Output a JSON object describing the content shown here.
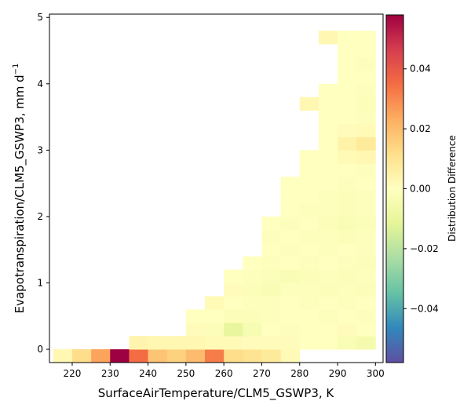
{
  "chart_data": {
    "type": "heatmap",
    "xlabel": "SurfaceAirTemperature/CLM5_GSWP3,  K",
    "ylabel": "Evapotranspiration/CLM5_GSWP3,  mm d",
    "ylabel_sup": "−1",
    "xlim": [
      214,
      302
    ],
    "ylim": [
      -0.2,
      5.05
    ],
    "xticks": [
      220,
      230,
      240,
      250,
      260,
      270,
      280,
      290,
      300
    ],
    "yticks": [
      0,
      1,
      2,
      3,
      4,
      5
    ],
    "colorbar": {
      "label": "Distribution Difference",
      "range": [
        -0.058,
        0.058
      ],
      "ticks": [
        -0.04,
        -0.02,
        0.0,
        0.02,
        0.04
      ],
      "tick_labels": [
        "−0.04",
        "−0.02",
        "0.00",
        "0.02",
        "0.04"
      ],
      "colormap": "Spectral_r"
    },
    "cell_width_K": 5,
    "cell_height_mmd": 0.2,
    "cells": [
      [
        217.5,
        -0.1,
        0.003
      ],
      [
        222.5,
        -0.1,
        0.012
      ],
      [
        227.5,
        -0.1,
        0.025
      ],
      [
        232.5,
        -0.1,
        0.058
      ],
      [
        237.5,
        -0.1,
        0.035
      ],
      [
        242.5,
        -0.1,
        0.018
      ],
      [
        247.5,
        -0.1,
        0.015
      ],
      [
        252.5,
        -0.1,
        0.02
      ],
      [
        257.5,
        -0.1,
        0.032
      ],
      [
        262.5,
        -0.1,
        0.012
      ],
      [
        267.5,
        -0.1,
        0.01
      ],
      [
        272.5,
        -0.1,
        0.008
      ],
      [
        277.5,
        -0.1,
        0.002
      ],
      [
        237.5,
        0.1,
        0.004
      ],
      [
        242.5,
        0.1,
        0.003
      ],
      [
        247.5,
        0.1,
        0.003
      ],
      [
        252.5,
        0.1,
        0.003
      ],
      [
        257.5,
        0.1,
        0.002
      ],
      [
        262.5,
        0.1,
        0.002
      ],
      [
        267.5,
        0.1,
        0.001
      ],
      [
        272.5,
        0.1,
        0.001
      ],
      [
        277.5,
        0.1,
        0.001
      ],
      [
        282.5,
        0.1,
        0.0
      ],
      [
        287.5,
        0.1,
        0.0
      ],
      [
        292.5,
        0.1,
        -0.003
      ],
      [
        297.5,
        0.1,
        -0.005
      ],
      [
        252.5,
        0.3,
        0.001
      ],
      [
        257.5,
        0.3,
        -0.002
      ],
      [
        262.5,
        0.3,
        -0.01
      ],
      [
        267.5,
        0.3,
        -0.004
      ],
      [
        272.5,
        0.3,
        0.0
      ],
      [
        277.5,
        0.3,
        -0.001
      ],
      [
        282.5,
        0.3,
        0.0
      ],
      [
        287.5,
        0.3,
        0.0
      ],
      [
        292.5,
        0.3,
        0.001
      ],
      [
        297.5,
        0.3,
        0.0
      ],
      [
        252.5,
        0.5,
        0.0
      ],
      [
        257.5,
        0.5,
        0.0
      ],
      [
        262.5,
        0.5,
        -0.002
      ],
      [
        267.5,
        0.5,
        -0.002
      ],
      [
        272.5,
        0.5,
        -0.001
      ],
      [
        277.5,
        0.5,
        0.0
      ],
      [
        282.5,
        0.5,
        0.0
      ],
      [
        287.5,
        0.5,
        -0.001
      ],
      [
        292.5,
        0.5,
        0.0
      ],
      [
        297.5,
        0.5,
        -0.001
      ],
      [
        257.5,
        0.7,
        0.002
      ],
      [
        262.5,
        0.7,
        0.0
      ],
      [
        267.5,
        0.7,
        -0.001
      ],
      [
        272.5,
        0.7,
        -0.001
      ],
      [
        277.5,
        0.7,
        0.0
      ],
      [
        282.5,
        0.7,
        -0.001
      ],
      [
        287.5,
        0.7,
        0.0
      ],
      [
        292.5,
        0.7,
        -0.001
      ],
      [
        297.5,
        0.7,
        0.0
      ],
      [
        262.5,
        0.9,
        0.001
      ],
      [
        267.5,
        0.9,
        -0.002
      ],
      [
        272.5,
        0.9,
        -0.003
      ],
      [
        277.5,
        0.9,
        -0.001
      ],
      [
        282.5,
        0.9,
        -0.001
      ],
      [
        287.5,
        0.9,
        -0.002
      ],
      [
        292.5,
        0.9,
        -0.001
      ],
      [
        297.5,
        0.9,
        -0.002
      ],
      [
        262.5,
        1.1,
        0.0
      ],
      [
        267.5,
        1.1,
        -0.001
      ],
      [
        272.5,
        1.1,
        -0.002
      ],
      [
        277.5,
        1.1,
        -0.003
      ],
      [
        282.5,
        1.1,
        -0.002
      ],
      [
        287.5,
        1.1,
        -0.001
      ],
      [
        292.5,
        1.1,
        -0.002
      ],
      [
        297.5,
        1.1,
        -0.001
      ],
      [
        267.5,
        1.3,
        0.0
      ],
      [
        272.5,
        1.3,
        -0.001
      ],
      [
        277.5,
        1.3,
        0.0
      ],
      [
        282.5,
        1.3,
        -0.001
      ],
      [
        287.5,
        1.3,
        0.0
      ],
      [
        292.5,
        1.3,
        -0.001
      ],
      [
        297.5,
        1.3,
        -0.002
      ],
      [
        272.5,
        1.5,
        0.0
      ],
      [
        277.5,
        1.5,
        -0.001
      ],
      [
        282.5,
        1.5,
        0.0
      ],
      [
        287.5,
        1.5,
        -0.001
      ],
      [
        292.5,
        1.5,
        0.0
      ],
      [
        297.5,
        1.5,
        -0.001
      ],
      [
        272.5,
        1.7,
        -0.001
      ],
      [
        277.5,
        1.7,
        0.0
      ],
      [
        282.5,
        1.7,
        -0.001
      ],
      [
        287.5,
        1.7,
        -0.001
      ],
      [
        292.5,
        1.7,
        -0.002
      ],
      [
        297.5,
        1.7,
        -0.001
      ],
      [
        272.5,
        1.9,
        0.0
      ],
      [
        277.5,
        1.9,
        -0.001
      ],
      [
        282.5,
        1.9,
        0.0
      ],
      [
        287.5,
        1.9,
        -0.002
      ],
      [
        292.5,
        1.9,
        -0.003
      ],
      [
        297.5,
        1.9,
        -0.002
      ],
      [
        277.5,
        2.1,
        0.0
      ],
      [
        282.5,
        2.1,
        -0.001
      ],
      [
        287.5,
        2.1,
        -0.001
      ],
      [
        292.5,
        2.1,
        -0.002
      ],
      [
        297.5,
        2.1,
        -0.001
      ],
      [
        277.5,
        2.3,
        0.0
      ],
      [
        282.5,
        2.3,
        0.0
      ],
      [
        287.5,
        2.3,
        -0.001
      ],
      [
        292.5,
        2.3,
        -0.002
      ],
      [
        297.5,
        2.3,
        -0.001
      ],
      [
        277.5,
        2.5,
        0.0
      ],
      [
        282.5,
        2.5,
        0.0
      ],
      [
        287.5,
        2.5,
        0.0
      ],
      [
        292.5,
        2.5,
        -0.001
      ],
      [
        297.5,
        2.5,
        0.0
      ],
      [
        282.5,
        2.7,
        0.0
      ],
      [
        287.5,
        2.7,
        0.0
      ],
      [
        292.5,
        2.7,
        0.0
      ],
      [
        297.5,
        2.7,
        -0.001
      ],
      [
        282.5,
        2.9,
        0.0
      ],
      [
        287.5,
        2.9,
        0.0
      ],
      [
        292.5,
        2.9,
        0.002
      ],
      [
        297.5,
        2.9,
        0.003
      ],
      [
        287.5,
        3.1,
        0.0
      ],
      [
        292.5,
        3.1,
        0.005
      ],
      [
        297.5,
        3.1,
        0.008
      ],
      [
        287.5,
        3.3,
        0.0
      ],
      [
        292.5,
        3.3,
        0.001
      ],
      [
        297.5,
        3.3,
        0.002
      ],
      [
        287.5,
        3.5,
        0.0
      ],
      [
        292.5,
        3.5,
        0.0
      ],
      [
        297.5,
        3.5,
        -0.001
      ],
      [
        282.5,
        3.7,
        0.003
      ],
      [
        287.5,
        3.7,
        0.0
      ],
      [
        292.5,
        3.7,
        0.0
      ],
      [
        297.5,
        3.7,
        -0.002
      ],
      [
        287.5,
        3.9,
        0.0
      ],
      [
        292.5,
        3.9,
        0.0
      ],
      [
        297.5,
        3.9,
        -0.001
      ],
      [
        292.5,
        4.1,
        0.0
      ],
      [
        297.5,
        4.1,
        0.0
      ],
      [
        292.5,
        4.3,
        0.0
      ],
      [
        297.5,
        4.3,
        -0.001
      ],
      [
        292.5,
        4.5,
        0.0
      ],
      [
        297.5,
        4.5,
        0.0
      ],
      [
        287.5,
        4.7,
        0.003
      ],
      [
        292.5,
        4.7,
        0.0
      ],
      [
        297.5,
        4.7,
        0.0
      ]
    ]
  }
}
